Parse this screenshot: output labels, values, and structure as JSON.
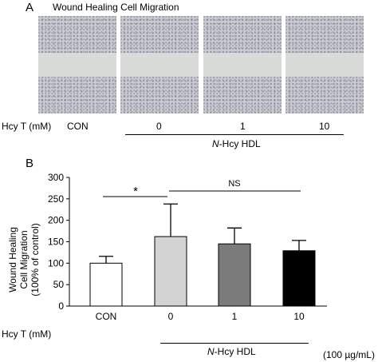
{
  "panel_a": {
    "letter": "A",
    "title": "Wound Healing Cell Migration",
    "row_label": "Hcy T (mM)",
    "conditions": [
      "CON",
      "0",
      "1",
      "10"
    ],
    "group_label_prefix": "N",
    "group_label_rest": "-Hcy HDL"
  },
  "panel_b": {
    "letter": "B",
    "row_label": "Hcy T (mM)",
    "group_label_prefix": "N",
    "group_label_rest": "-Hcy HDL",
    "unit_note": "(100 µg/mL)",
    "sig_star": "*",
    "sig_ns": "NS"
  },
  "chart_data": {
    "type": "bar",
    "categories": [
      "CON",
      "0",
      "1",
      "10"
    ],
    "values": [
      100,
      162,
      145,
      129
    ],
    "errors": [
      16,
      76,
      37,
      24
    ],
    "bar_colors": [
      "#ffffff",
      "#d3d3d3",
      "#7b7b7b",
      "#000000"
    ],
    "ylabel": "Wound Healing Cell Migration (100% of control)",
    "ylim": [
      0,
      300
    ],
    "yticks": [
      0,
      50,
      100,
      150,
      200,
      250,
      300
    ],
    "xlabel": "Hcy T (mM)",
    "grid": false
  }
}
